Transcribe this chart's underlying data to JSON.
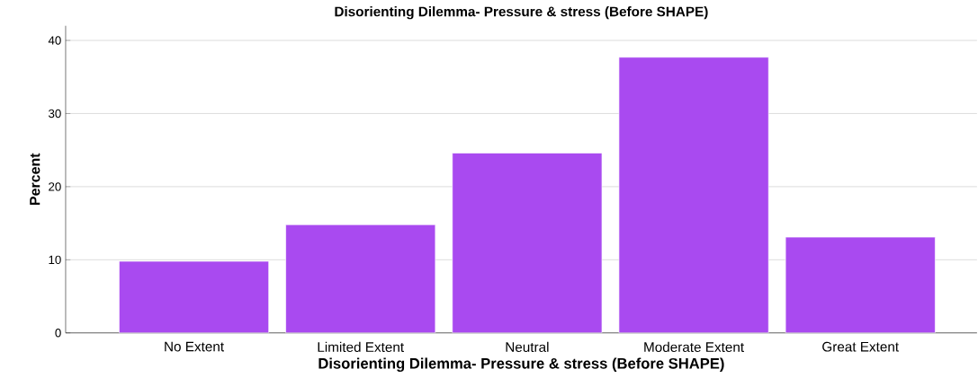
{
  "chart_data": {
    "type": "bar",
    "title": "Disorienting Dilemma- Pressure & stress (Before SHAPE)",
    "xlabel": "Disorienting Dilemma- Pressure & stress (Before SHAPE)",
    "ylabel": "Percent",
    "categories": [
      "No Extent",
      "Limited Extent",
      "Neutral",
      "Moderate Extent",
      "Great Extent"
    ],
    "values": [
      9.8,
      14.8,
      24.6,
      37.7,
      13.1
    ],
    "color": "#a94af0",
    "ylim": [
      0,
      42
    ],
    "yticks": [
      0,
      10,
      20,
      30,
      40
    ],
    "grid": "y"
  }
}
